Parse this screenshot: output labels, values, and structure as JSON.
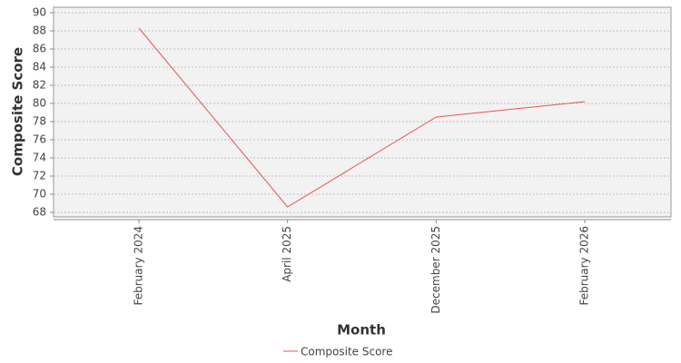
{
  "chart_data": {
    "type": "line",
    "x_label": "Month",
    "y_label": "Composite Score",
    "categories": [
      "February 2024",
      "April 2025",
      "December 2025",
      "February 2026"
    ],
    "series": [
      {
        "name": "Composite Score",
        "color": "#e8544e",
        "values": [
          88.3,
          68.6,
          78.5,
          80.2
        ]
      }
    ],
    "ylim": [
      67.5,
      90.6
    ],
    "yticks": [
      68,
      70,
      72,
      74,
      76,
      78,
      80,
      82,
      84,
      86,
      88,
      90
    ],
    "grid": true
  }
}
